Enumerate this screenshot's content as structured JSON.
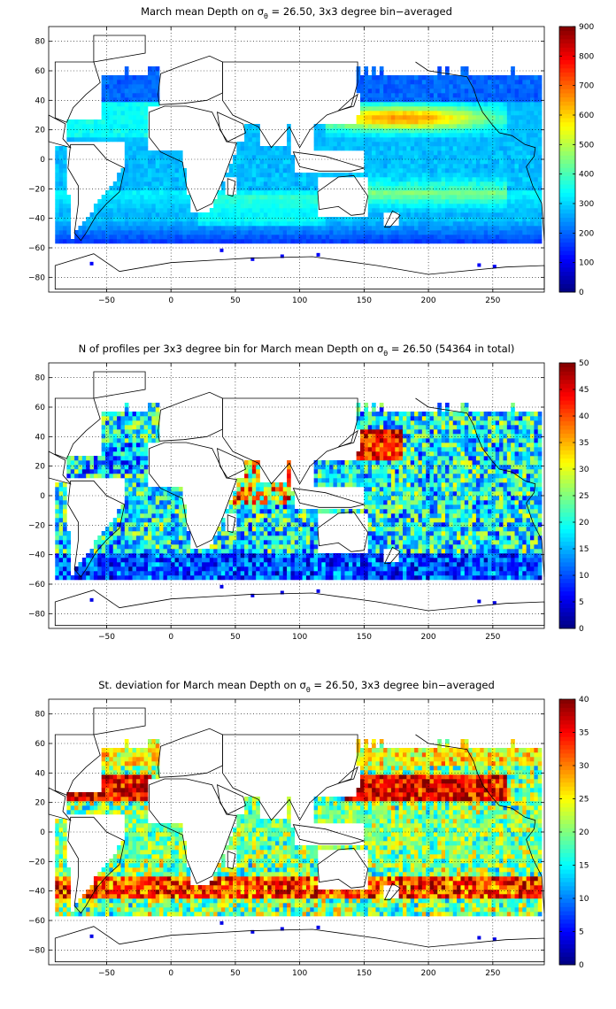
{
  "chart_data": [
    {
      "type": "heatmap",
      "title_pre": "March mean Depth on σ",
      "title_sub": "θ",
      "title_post": " = 26.50, 3x3 degree bin−averaged",
      "xlim": [
        -95,
        290
      ],
      "ylim": [
        -90,
        90
      ],
      "xticks": [
        -50,
        0,
        50,
        100,
        150,
        200,
        250
      ],
      "yticks": [
        -80,
        -60,
        -40,
        -20,
        0,
        20,
        40,
        60,
        80
      ],
      "colorbar": {
        "min": 0,
        "max": 900,
        "ticks": [
          0,
          100,
          200,
          300,
          400,
          500,
          600,
          700,
          800,
          900
        ]
      },
      "colormap": "jet",
      "grid": "dotted",
      "bin_size_deg": 3,
      "pattern": "mean_depth"
    },
    {
      "type": "heatmap",
      "title_pre": "N of profiles per 3x3 degree bin for March mean Depth on σ",
      "title_sub": "θ",
      "title_post": " = 26.50 (54364 in total)",
      "xlim": [
        -95,
        290
      ],
      "ylim": [
        -90,
        90
      ],
      "xticks": [
        -50,
        0,
        50,
        100,
        150,
        200,
        250
      ],
      "yticks": [
        -80,
        -60,
        -40,
        -20,
        0,
        20,
        40,
        60,
        80
      ],
      "colorbar": {
        "min": 0,
        "max": 50,
        "ticks": [
          0,
          5,
          10,
          15,
          20,
          25,
          30,
          35,
          40,
          45,
          50
        ]
      },
      "colormap": "jet",
      "grid": "dotted",
      "bin_size_deg": 3,
      "pattern": "profile_count"
    },
    {
      "type": "heatmap",
      "title_pre": "St. deviation for March mean Depth on σ",
      "title_sub": "θ",
      "title_post": " = 26.50, 3x3 degree bin−averaged",
      "xlim": [
        -95,
        290
      ],
      "ylim": [
        -90,
        90
      ],
      "xticks": [
        -50,
        0,
        50,
        100,
        150,
        200,
        250
      ],
      "yticks": [
        -80,
        -60,
        -40,
        -20,
        0,
        20,
        40,
        60,
        80
      ],
      "colorbar": {
        "min": 0,
        "max": 40,
        "ticks": [
          0,
          5,
          10,
          15,
          20,
          25,
          30,
          35,
          40
        ]
      },
      "colormap": "jet",
      "grid": "dotted",
      "bin_size_deg": 3,
      "pattern": "std_dev"
    }
  ]
}
